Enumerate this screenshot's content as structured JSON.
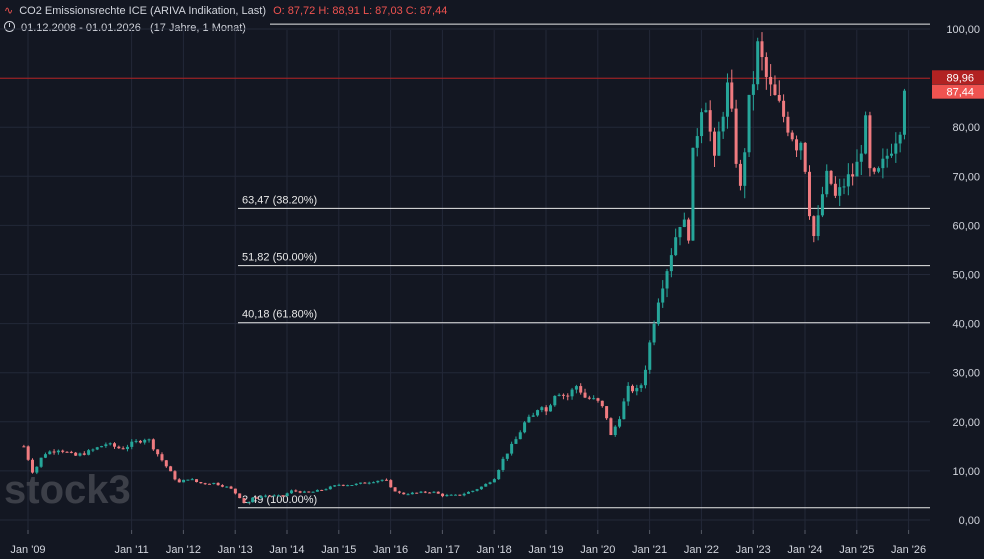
{
  "header": {
    "icon": "candle-wave-icon",
    "title": "CO2 Emissionsrechte ICE (ARIVA Indikation, Last)",
    "ohlc": "O: 87,72  H: 88,91  L: 87,03  C: 87,44",
    "period_icon": "clock-icon",
    "period": "01.12.2008 - 01.01.2026",
    "period_desc": "(17 Jahre, 1 Monat)"
  },
  "watermark": "stock3",
  "colors": {
    "up": "#26a69a",
    "down": "#f07b80",
    "background": "#131722",
    "price_line": "#b22222",
    "text": "#d1d4dc"
  },
  "chart_data": {
    "type": "candlestick",
    "title": "CO2 Emissionsrechte ICE (ARIVA Indikation, Last)",
    "interval": "1 Monat",
    "ylim": [
      0,
      100
    ],
    "y_ticks": [
      "0,00",
      "10,00",
      "20,00",
      "30,00",
      "40,00",
      "50,00",
      "60,00",
      "70,00",
      "80,00",
      "90,00",
      "100,00"
    ],
    "y_tick_values": [
      0,
      10,
      20,
      30,
      40,
      50,
      60,
      70,
      80,
      90,
      100
    ],
    "x_ticks": [
      {
        "label": "Jan '09",
        "year": 2009
      },
      {
        "label": "Jan '11",
        "year": 2011
      },
      {
        "label": "Jan '12",
        "year": 2012
      },
      {
        "label": "Jan '13",
        "year": 2013
      },
      {
        "label": "Jan '14",
        "year": 2014
      },
      {
        "label": "Jan '15",
        "year": 2015
      },
      {
        "label": "Jan '16",
        "year": 2016
      },
      {
        "label": "Jan '17",
        "year": 2017
      },
      {
        "label": "Jan '18",
        "year": 2018
      },
      {
        "label": "Jan '19",
        "year": 2019
      },
      {
        "label": "Jan '20",
        "year": 2020
      },
      {
        "label": "Jan '21",
        "year": 2021
      },
      {
        "label": "Jan '22",
        "year": 2022
      },
      {
        "label": "Jan '23",
        "year": 2023
      },
      {
        "label": "Jan '24",
        "year": 2024
      },
      {
        "label": "Jan '25",
        "year": 2025
      },
      {
        "label": "Jan '26",
        "year": 2026
      }
    ],
    "close_path": [
      [
        2008.92,
        15.0
      ],
      [
        2009.1,
        9.5
      ],
      [
        2009.3,
        13.5
      ],
      [
        2009.6,
        14.5
      ],
      [
        2009.9,
        13.0
      ],
      [
        2010.2,
        14.0
      ],
      [
        2010.5,
        15.5
      ],
      [
        2010.8,
        14.5
      ],
      [
        2011.0,
        15.5
      ],
      [
        2011.3,
        16.8
      ],
      [
        2011.5,
        13.5
      ],
      [
        2011.7,
        10.5
      ],
      [
        2011.9,
        7.5
      ],
      [
        2012.1,
        8.5
      ],
      [
        2012.3,
        7.5
      ],
      [
        2012.6,
        7.5
      ],
      [
        2012.9,
        6.5
      ],
      [
        2013.1,
        4.5
      ],
      [
        2013.2,
        3.2
      ],
      [
        2013.35,
        4.5
      ],
      [
        2013.6,
        5.0
      ],
      [
        2013.9,
        4.8
      ],
      [
        2014.1,
        6.0
      ],
      [
        2014.4,
        5.5
      ],
      [
        2014.7,
        6.2
      ],
      [
        2015.0,
        7.2
      ],
      [
        2015.3,
        7.2
      ],
      [
        2015.6,
        7.8
      ],
      [
        2015.9,
        8.3
      ],
      [
        2016.0,
        6.5
      ],
      [
        2016.2,
        5.3
      ],
      [
        2016.5,
        5.5
      ],
      [
        2016.8,
        5.8
      ],
      [
        2017.0,
        5.0
      ],
      [
        2017.3,
        5.0
      ],
      [
        2017.6,
        6.0
      ],
      [
        2017.8,
        7.0
      ],
      [
        2018.0,
        8.5
      ],
      [
        2018.2,
        13.0
      ],
      [
        2018.4,
        16.0
      ],
      [
        2018.6,
        20.0
      ],
      [
        2018.75,
        21.0
      ],
      [
        2018.9,
        24.0
      ],
      [
        2019.0,
        22.0
      ],
      [
        2019.2,
        26.5
      ],
      [
        2019.4,
        25.0
      ],
      [
        2019.6,
        27.5
      ],
      [
        2019.75,
        25.0
      ],
      [
        2019.9,
        24.5
      ],
      [
        2020.0,
        24.0
      ],
      [
        2020.15,
        22.0
      ],
      [
        2020.25,
        17.0
      ],
      [
        2020.4,
        20.5
      ],
      [
        2020.6,
        27.0
      ],
      [
        2020.8,
        26.0
      ],
      [
        2020.95,
        32.5
      ],
      [
        2021.05,
        39.0
      ],
      [
        2021.2,
        47.0
      ],
      [
        2021.3,
        50.0
      ],
      [
        2021.45,
        56.0
      ],
      [
        2021.6,
        61.5
      ],
      [
        2021.75,
        58.0
      ],
      [
        2021.85,
        76.0
      ],
      [
        2021.95,
        81.0
      ],
      [
        2022.05,
        88.5
      ],
      [
        2022.15,
        80.5
      ],
      [
        2022.25,
        72.0
      ],
      [
        2022.4,
        83.0
      ],
      [
        2022.5,
        88.0
      ],
      [
        2022.6,
        80.5
      ],
      [
        2022.75,
        66.5
      ],
      [
        2022.9,
        83.0
      ],
      [
        2023.0,
        89.5
      ],
      [
        2023.1,
        97.0
      ],
      [
        2023.2,
        91.5
      ],
      [
        2023.35,
        87.0
      ],
      [
        2023.5,
        84.0
      ],
      [
        2023.7,
        80.0
      ],
      [
        2023.85,
        76.5
      ],
      [
        2023.95,
        78.0
      ],
      [
        2024.1,
        62.0
      ],
      [
        2024.2,
        56.0
      ],
      [
        2024.3,
        65.0
      ],
      [
        2024.45,
        70.5
      ],
      [
        2024.6,
        65.0
      ],
      [
        2024.75,
        68.5
      ],
      [
        2024.9,
        70.0
      ],
      [
        2025.05,
        73.0
      ],
      [
        2025.15,
        82.5
      ],
      [
        2025.25,
        70.5
      ],
      [
        2025.35,
        69.0
      ],
      [
        2025.5,
        72.0
      ],
      [
        2025.65,
        76.0
      ],
      [
        2025.8,
        79.5
      ],
      [
        2025.92,
        84.0
      ],
      [
        2026.0,
        87.44
      ]
    ],
    "fib_levels": [
      {
        "value": 2.49,
        "label": "2,49 (100.00%)"
      },
      {
        "value": 40.18,
        "label": "40,18 (61.80%)"
      },
      {
        "value": 51.82,
        "label": "51,82 (50.00%)"
      },
      {
        "value": 63.47,
        "label": "63,47 (38.20%)"
      },
      {
        "value": 101.0,
        "label": ""
      }
    ],
    "price_labels": [
      {
        "value": 89.96,
        "label": "89,96",
        "color": "#b22222"
      },
      {
        "value": 87.44,
        "label": "87,44",
        "color": "#ef5350"
      }
    ]
  }
}
